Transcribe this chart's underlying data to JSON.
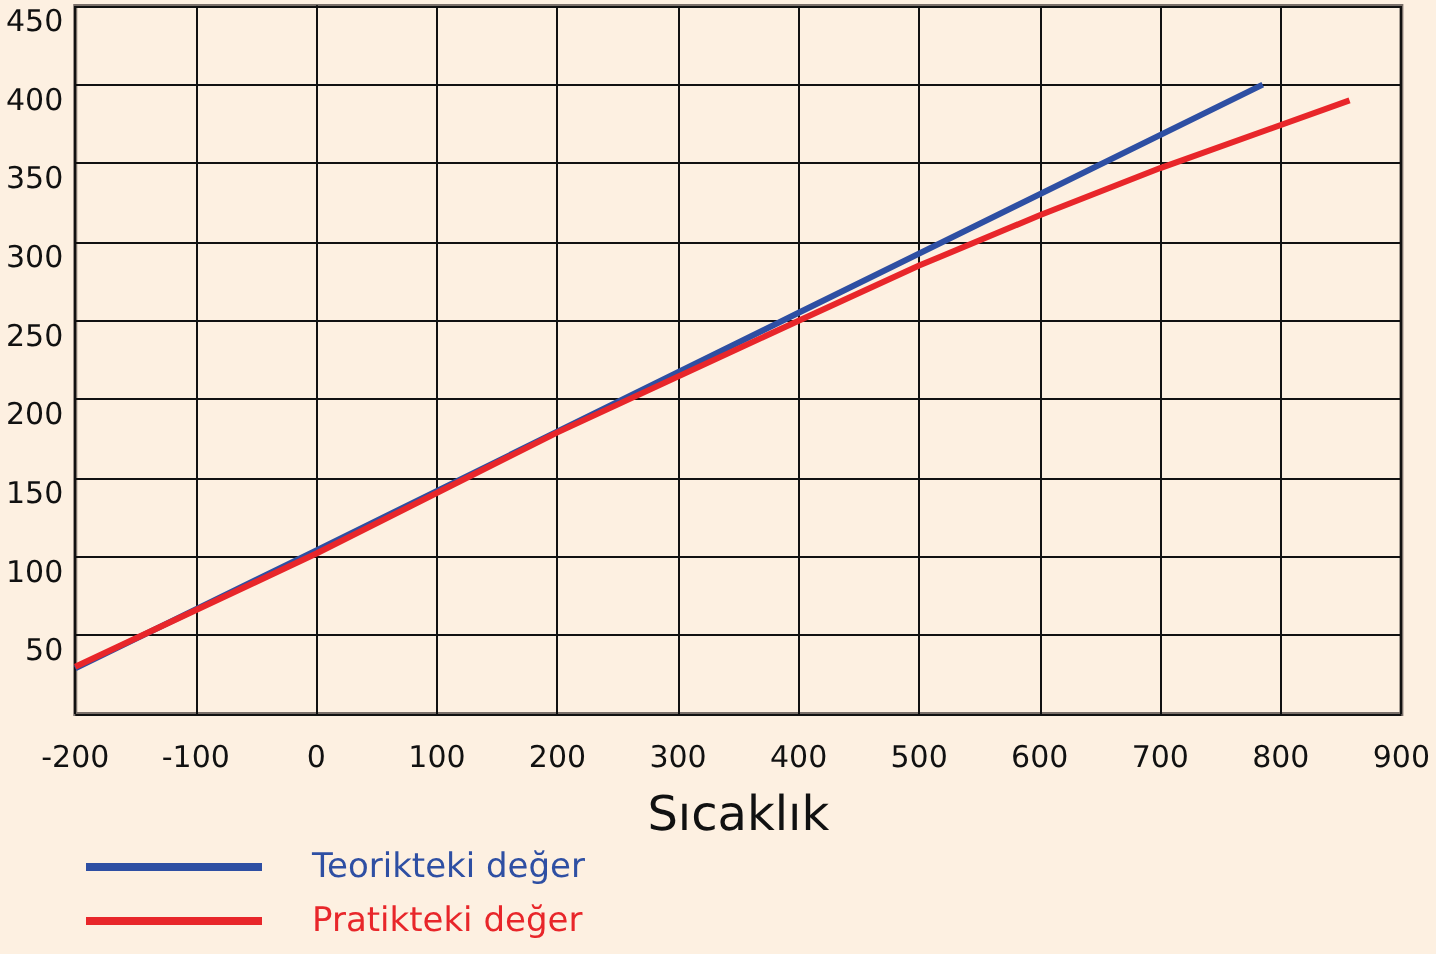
{
  "chart_data": {
    "type": "line",
    "xlabel": "Sıcaklık",
    "xlim": [
      -200,
      900
    ],
    "xticks": [
      -200,
      -100,
      0,
      100,
      200,
      300,
      400,
      500,
      600,
      700,
      800,
      900
    ],
    "ylim": [
      0,
      450
    ],
    "yticks": [
      50,
      100,
      150,
      200,
      250,
      300,
      350,
      400,
      450
    ],
    "grid": true,
    "legend": "bottom left",
    "marker": "none",
    "line_style": "solid",
    "series": [
      {
        "name": "Teorikteki değer",
        "color": "#2e4fa3",
        "x": [
          -200,
          0,
          400,
          785
        ],
        "values": [
          29,
          104,
          255,
          400
        ]
      },
      {
        "name": "Pratikteki değer",
        "color": "#e8262a",
        "x": [
          -200,
          0,
          200,
          400,
          500,
          600,
          700,
          857
        ],
        "values": [
          30,
          102,
          179,
          250,
          285,
          317,
          347,
          390
        ]
      }
    ]
  }
}
